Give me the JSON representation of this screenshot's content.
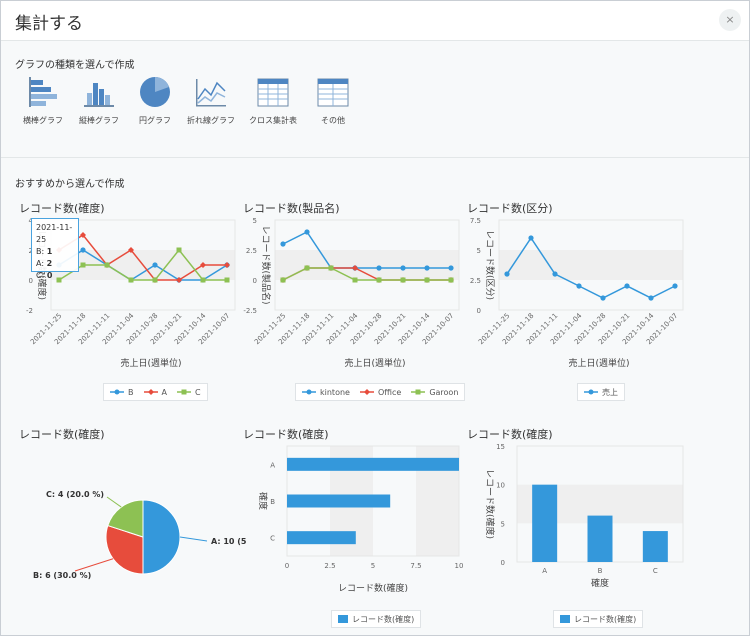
{
  "dialog": {
    "title": "集計する",
    "close": "×"
  },
  "section1": {
    "title": "グラフの種類を選んで作成"
  },
  "types": [
    {
      "icon": "horizontal-bar-chart-icon",
      "label": "横棒グラフ"
    },
    {
      "icon": "vertical-bar-chart-icon",
      "label": "縦棒グラフ"
    },
    {
      "icon": "pie-chart-icon",
      "label": "円グラフ"
    },
    {
      "icon": "line-chart-icon",
      "label": "折れ線グラフ"
    },
    {
      "icon": "crosstab-table-icon",
      "label": "クロス集計表"
    },
    {
      "icon": "other-table-icon",
      "label": "その他"
    }
  ],
  "section2": {
    "title": "おすすめから選んで作成"
  },
  "tooltip": {
    "date": "2021-11-25",
    "b": "B:",
    "b_val": "1",
    "a": "A:",
    "a_val": "2",
    "c": "C:",
    "c_val": "0"
  },
  "colors": {
    "blue": "#3498db",
    "red": "#e74c3c",
    "green": "#8dc153",
    "grid_band": "#efefef"
  },
  "chart_data": [
    {
      "type": "line",
      "title": "レコード数(確度)",
      "xlabel": "売上日(週単位)",
      "ylabel": "レコード数(確度)",
      "categories": [
        "2021-11-25",
        "2021-11-18",
        "2021-11-11",
        "2021-11-04",
        "2021-10-28",
        "2021-10-21",
        "2021-10-14",
        "2021-10-07"
      ],
      "y_ticks": [
        "-2",
        "0",
        "2",
        "4"
      ],
      "ylim": [
        -2,
        4
      ],
      "series": [
        {
          "name": "B",
          "color": "#3498db",
          "values": [
            1,
            2,
            1,
            0,
            1,
            0,
            0,
            1
          ]
        },
        {
          "name": "A",
          "color": "#e74c3c",
          "values": [
            2,
            3,
            1,
            2,
            0,
            0,
            1,
            1
          ]
        },
        {
          "name": "C",
          "color": "#8dc153",
          "values": [
            0,
            1,
            1,
            0,
            0,
            2,
            0,
            0
          ]
        }
      ]
    },
    {
      "type": "line",
      "title": "レコード数(製品名)",
      "xlabel": "売上日(週単位)",
      "ylabel": "レコード数(製品名)",
      "categories": [
        "2021-11-25",
        "2021-11-18",
        "2021-11-11",
        "2021-11-04",
        "2021-10-28",
        "2021-10-21",
        "2021-10-14",
        "2021-10-07"
      ],
      "y_ticks": [
        "-2.5",
        "0",
        "2.5",
        "5"
      ],
      "ylim": [
        -2.5,
        5
      ],
      "series": [
        {
          "name": "kintone",
          "color": "#3498db",
          "values": [
            3,
            4,
            1,
            1,
            1,
            1,
            1,
            1
          ]
        },
        {
          "name": "Office",
          "color": "#e74c3c",
          "values": [
            0,
            1,
            1,
            1,
            0,
            0,
            0,
            0
          ]
        },
        {
          "name": "Garoon",
          "color": "#8dc153",
          "values": [
            0,
            1,
            1,
            0,
            0,
            0,
            0,
            0
          ]
        }
      ]
    },
    {
      "type": "line",
      "title": "レコード数(区分)",
      "xlabel": "売上日(週単位)",
      "ylabel": "レコード数(区分)",
      "categories": [
        "2021-11-25",
        "2021-11-18",
        "2021-11-11",
        "2021-11-04",
        "2021-10-28",
        "2021-10-21",
        "2021-10-14",
        "2021-10-07"
      ],
      "y_ticks": [
        "0",
        "2.5",
        "5",
        "7.5"
      ],
      "ylim": [
        0,
        7.5
      ],
      "series": [
        {
          "name": "売上",
          "color": "#3498db",
          "values": [
            3,
            6,
            3,
            2,
            1,
            2,
            1,
            2
          ]
        }
      ]
    },
    {
      "type": "pie",
      "title": "レコード数(確度)",
      "slices": [
        {
          "name": "A",
          "value": 10,
          "label": "A: 10 (5",
          "color": "#3498db"
        },
        {
          "name": "B",
          "value": 6,
          "label": "B: 6 (30.0 %)",
          "color": "#e74c3c"
        },
        {
          "name": "C",
          "value": 4,
          "label": "C: 4 (20.0 %)",
          "color": "#8dc153"
        }
      ]
    },
    {
      "type": "bar",
      "orientation": "horizontal",
      "title": "レコード数(確度)",
      "xlabel": "レコード数(確度)",
      "ylabel": "確度",
      "categories": [
        "A",
        "B",
        "C"
      ],
      "values": [
        10,
        6,
        4
      ],
      "x_ticks": [
        "0",
        "2.5",
        "5",
        "7.5",
        "10"
      ],
      "xlim": [
        0,
        10
      ],
      "legend": "レコード数(確度)",
      "color": "#3498db"
    },
    {
      "type": "bar",
      "orientation": "vertical",
      "title": "レコード数(確度)",
      "xlabel": "確度",
      "ylabel": "レコード数(確度)",
      "categories": [
        "A",
        "B",
        "C"
      ],
      "values": [
        10,
        6,
        4
      ],
      "y_ticks": [
        "0",
        "5",
        "10",
        "15"
      ],
      "ylim": [
        0,
        15
      ],
      "legend": "レコード数(確度)",
      "color": "#3498db"
    }
  ]
}
